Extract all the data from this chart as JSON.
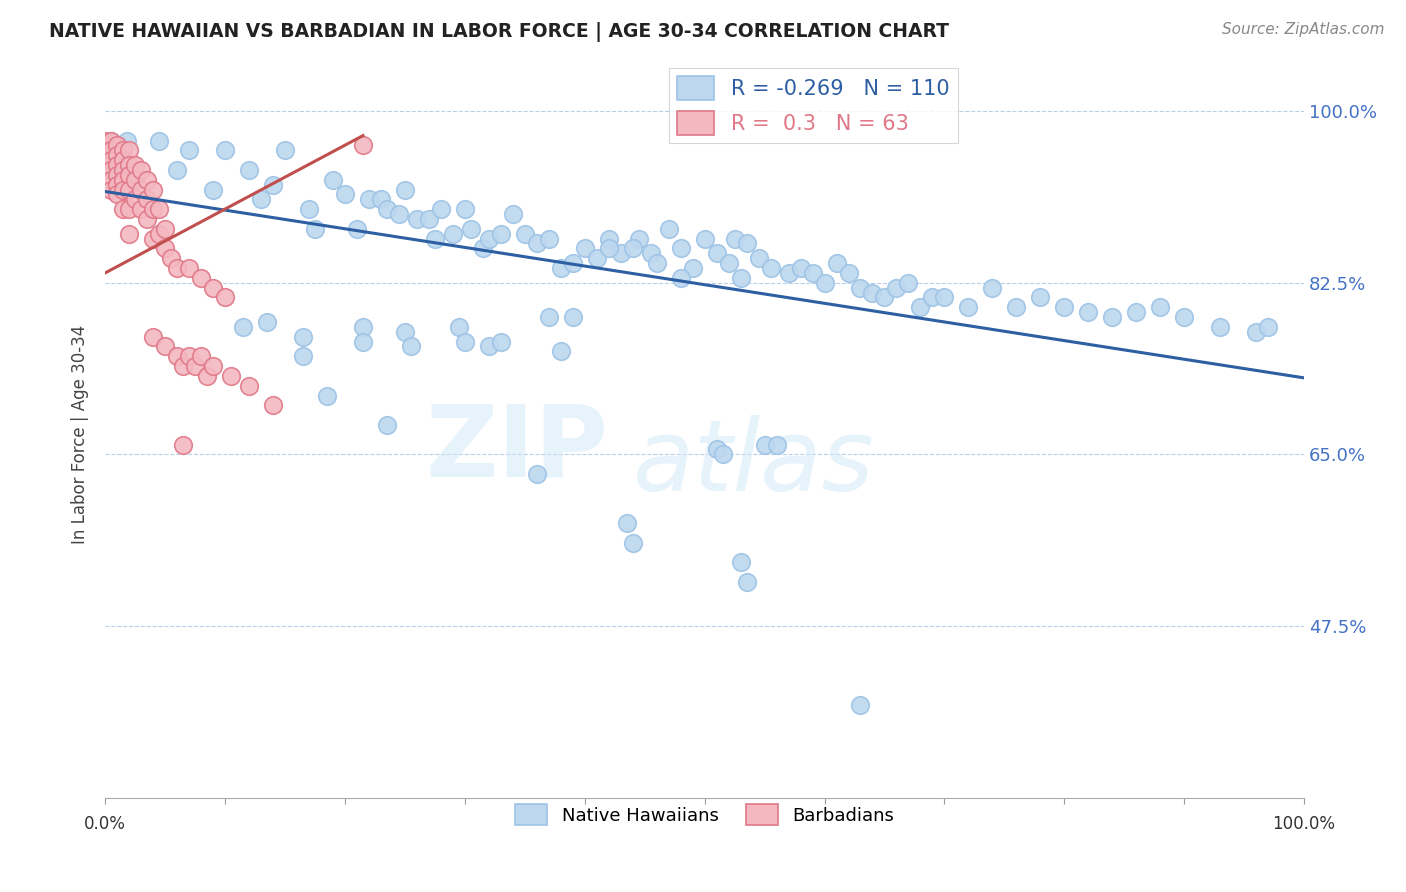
{
  "title": "NATIVE HAWAIIAN VS BARBADIAN IN LABOR FORCE | AGE 30-34 CORRELATION CHART",
  "source": "Source: ZipAtlas.com",
  "ylabel": "In Labor Force | Age 30-34",
  "watermark_zip": "ZIP",
  "watermark_atlas": "atlas",
  "blue_R": -0.269,
  "blue_N": 110,
  "pink_R": 0.3,
  "pink_N": 63,
  "blue_color": "#bdd7ee",
  "blue_edge": "#9dc3e6",
  "pink_color": "#f4b8c1",
  "pink_edge": "#e07888",
  "blue_line_color": "#2e5fa3",
  "pink_line_color": "#c0504d",
  "legend_blue_label": "Native Hawaiians",
  "legend_pink_label": "Barbadians",
  "xlim": [
    0.0,
    1.0
  ],
  "ylim": [
    0.3,
    1.04
  ],
  "ytick_positions": [
    0.475,
    0.65,
    0.825,
    1.0
  ],
  "ytick_labels": [
    "47.5%",
    "65.0%",
    "82.5%",
    "100.0%"
  ],
  "blue_trendline_x": [
    0.0,
    1.0
  ],
  "blue_trendline_y": [
    0.918,
    0.728
  ],
  "pink_trendline_x": [
    0.0,
    0.215
  ],
  "pink_trendline_y": [
    0.835,
    0.975
  ],
  "blue_scatter": [
    [
      0.005,
      0.97
    ],
    [
      0.018,
      0.97
    ],
    [
      0.015,
      0.94
    ],
    [
      0.045,
      0.97
    ],
    [
      0.06,
      0.94
    ],
    [
      0.07,
      0.96
    ],
    [
      0.09,
      0.92
    ],
    [
      0.1,
      0.96
    ],
    [
      0.12,
      0.94
    ],
    [
      0.13,
      0.91
    ],
    [
      0.14,
      0.925
    ],
    [
      0.15,
      0.96
    ],
    [
      0.17,
      0.9
    ],
    [
      0.175,
      0.88
    ],
    [
      0.19,
      0.93
    ],
    [
      0.2,
      0.915
    ],
    [
      0.21,
      0.88
    ],
    [
      0.22,
      0.91
    ],
    [
      0.23,
      0.91
    ],
    [
      0.235,
      0.9
    ],
    [
      0.245,
      0.895
    ],
    [
      0.25,
      0.92
    ],
    [
      0.26,
      0.89
    ],
    [
      0.27,
      0.89
    ],
    [
      0.275,
      0.87
    ],
    [
      0.28,
      0.9
    ],
    [
      0.29,
      0.875
    ],
    [
      0.3,
      0.9
    ],
    [
      0.305,
      0.88
    ],
    [
      0.315,
      0.86
    ],
    [
      0.32,
      0.87
    ],
    [
      0.33,
      0.875
    ],
    [
      0.34,
      0.895
    ],
    [
      0.35,
      0.875
    ],
    [
      0.36,
      0.865
    ],
    [
      0.37,
      0.87
    ],
    [
      0.38,
      0.84
    ],
    [
      0.39,
      0.845
    ],
    [
      0.4,
      0.86
    ],
    [
      0.41,
      0.85
    ],
    [
      0.42,
      0.87
    ],
    [
      0.43,
      0.855
    ],
    [
      0.445,
      0.87
    ],
    [
      0.455,
      0.855
    ],
    [
      0.46,
      0.845
    ],
    [
      0.47,
      0.88
    ],
    [
      0.48,
      0.86
    ],
    [
      0.49,
      0.84
    ],
    [
      0.5,
      0.87
    ],
    [
      0.51,
      0.855
    ],
    [
      0.52,
      0.845
    ],
    [
      0.525,
      0.87
    ],
    [
      0.53,
      0.83
    ],
    [
      0.535,
      0.865
    ],
    [
      0.545,
      0.85
    ],
    [
      0.555,
      0.84
    ],
    [
      0.57,
      0.835
    ],
    [
      0.58,
      0.84
    ],
    [
      0.59,
      0.835
    ],
    [
      0.42,
      0.86
    ],
    [
      0.44,
      0.86
    ],
    [
      0.48,
      0.83
    ],
    [
      0.51,
      0.655
    ],
    [
      0.515,
      0.65
    ],
    [
      0.55,
      0.66
    ],
    [
      0.56,
      0.66
    ],
    [
      0.6,
      0.825
    ],
    [
      0.61,
      0.845
    ],
    [
      0.62,
      0.835
    ],
    [
      0.63,
      0.82
    ],
    [
      0.64,
      0.815
    ],
    [
      0.65,
      0.81
    ],
    [
      0.66,
      0.82
    ],
    [
      0.67,
      0.825
    ],
    [
      0.68,
      0.8
    ],
    [
      0.69,
      0.81
    ],
    [
      0.7,
      0.81
    ],
    [
      0.72,
      0.8
    ],
    [
      0.74,
      0.82
    ],
    [
      0.76,
      0.8
    ],
    [
      0.78,
      0.81
    ],
    [
      0.8,
      0.8
    ],
    [
      0.82,
      0.795
    ],
    [
      0.84,
      0.79
    ],
    [
      0.86,
      0.795
    ],
    [
      0.88,
      0.8
    ],
    [
      0.9,
      0.79
    ],
    [
      0.93,
      0.78
    ],
    [
      0.96,
      0.775
    ],
    [
      0.97,
      0.78
    ],
    [
      0.37,
      0.79
    ],
    [
      0.39,
      0.79
    ],
    [
      0.115,
      0.78
    ],
    [
      0.135,
      0.785
    ],
    [
      0.165,
      0.77
    ],
    [
      0.165,
      0.75
    ],
    [
      0.215,
      0.78
    ],
    [
      0.215,
      0.765
    ],
    [
      0.25,
      0.775
    ],
    [
      0.255,
      0.76
    ],
    [
      0.295,
      0.78
    ],
    [
      0.3,
      0.765
    ],
    [
      0.32,
      0.76
    ],
    [
      0.33,
      0.765
    ],
    [
      0.38,
      0.755
    ],
    [
      0.185,
      0.71
    ],
    [
      0.235,
      0.68
    ],
    [
      0.36,
      0.63
    ],
    [
      0.435,
      0.58
    ],
    [
      0.44,
      0.56
    ],
    [
      0.53,
      0.54
    ],
    [
      0.535,
      0.52
    ],
    [
      0.63,
      0.395
    ]
  ],
  "pink_scatter": [
    [
      0.0,
      0.97
    ],
    [
      0.0,
      0.965
    ],
    [
      0.0,
      0.96
    ],
    [
      0.0,
      0.955
    ],
    [
      0.0,
      0.95
    ],
    [
      0.0,
      0.945
    ],
    [
      0.0,
      0.94
    ],
    [
      0.005,
      0.97
    ],
    [
      0.005,
      0.96
    ],
    [
      0.005,
      0.95
    ],
    [
      0.005,
      0.94
    ],
    [
      0.005,
      0.93
    ],
    [
      0.005,
      0.92
    ],
    [
      0.01,
      0.965
    ],
    [
      0.01,
      0.955
    ],
    [
      0.01,
      0.945
    ],
    [
      0.01,
      0.935
    ],
    [
      0.01,
      0.925
    ],
    [
      0.01,
      0.915
    ],
    [
      0.015,
      0.96
    ],
    [
      0.015,
      0.95
    ],
    [
      0.015,
      0.94
    ],
    [
      0.015,
      0.93
    ],
    [
      0.015,
      0.92
    ],
    [
      0.015,
      0.9
    ],
    [
      0.02,
      0.96
    ],
    [
      0.02,
      0.945
    ],
    [
      0.02,
      0.935
    ],
    [
      0.02,
      0.92
    ],
    [
      0.02,
      0.9
    ],
    [
      0.02,
      0.875
    ],
    [
      0.025,
      0.945
    ],
    [
      0.025,
      0.93
    ],
    [
      0.025,
      0.91
    ],
    [
      0.03,
      0.94
    ],
    [
      0.03,
      0.92
    ],
    [
      0.03,
      0.9
    ],
    [
      0.035,
      0.93
    ],
    [
      0.035,
      0.91
    ],
    [
      0.035,
      0.89
    ],
    [
      0.04,
      0.92
    ],
    [
      0.04,
      0.9
    ],
    [
      0.04,
      0.87
    ],
    [
      0.045,
      0.9
    ],
    [
      0.045,
      0.875
    ],
    [
      0.05,
      0.88
    ],
    [
      0.05,
      0.86
    ],
    [
      0.055,
      0.85
    ],
    [
      0.06,
      0.84
    ],
    [
      0.07,
      0.84
    ],
    [
      0.08,
      0.83
    ],
    [
      0.09,
      0.82
    ],
    [
      0.1,
      0.81
    ],
    [
      0.04,
      0.77
    ],
    [
      0.05,
      0.76
    ],
    [
      0.06,
      0.75
    ],
    [
      0.065,
      0.74
    ],
    [
      0.07,
      0.75
    ],
    [
      0.075,
      0.74
    ],
    [
      0.08,
      0.75
    ],
    [
      0.085,
      0.73
    ],
    [
      0.09,
      0.74
    ],
    [
      0.105,
      0.73
    ],
    [
      0.12,
      0.72
    ],
    [
      0.14,
      0.7
    ],
    [
      0.215,
      0.965
    ],
    [
      0.065,
      0.66
    ]
  ]
}
